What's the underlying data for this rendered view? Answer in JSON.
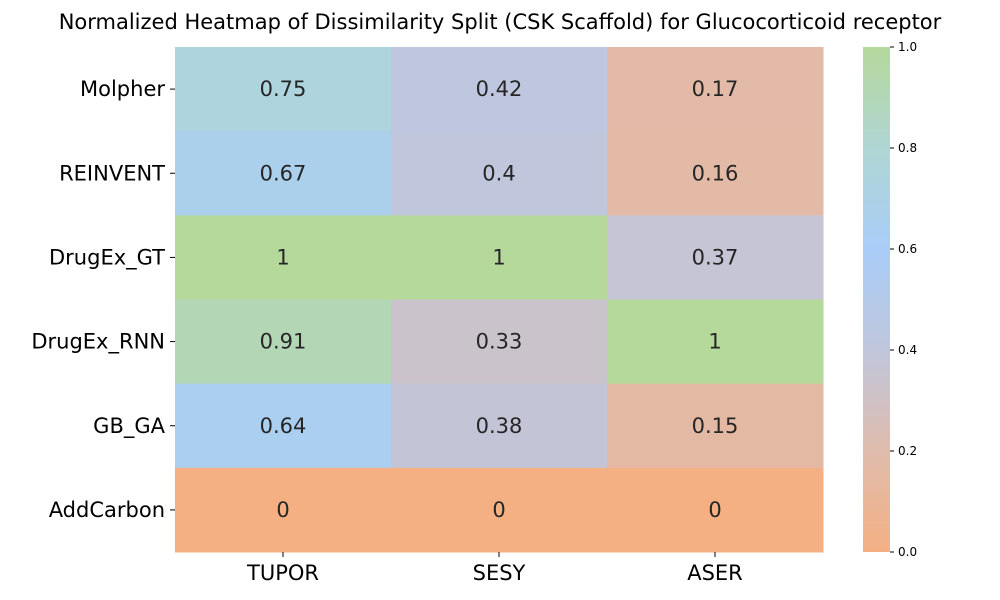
{
  "chart_data": {
    "type": "heatmap",
    "title": "Normalized Heatmap of Dissimilarity Split (CSK Scaffold) for Glucocorticoid receptor",
    "xlabel": "",
    "ylabel": "",
    "x_categories": [
      "TUPOR",
      "SESY",
      "ASER"
    ],
    "y_categories": [
      "Molpher",
      "REINVENT",
      "DrugEx_GT",
      "DrugEx_RNN",
      "GB_GA",
      "AddCarbon"
    ],
    "values": [
      [
        0.75,
        0.42,
        0.17
      ],
      [
        0.67,
        0.4,
        0.16
      ],
      [
        1,
        1,
        0.37
      ],
      [
        0.91,
        0.33,
        1
      ],
      [
        0.64,
        0.38,
        0.15
      ],
      [
        0,
        0,
        0
      ]
    ],
    "cell_labels": [
      [
        "0.75",
        "0.42",
        "0.17"
      ],
      [
        "0.67",
        "0.4",
        "0.16"
      ],
      [
        "1",
        "1",
        "0.37"
      ],
      [
        "0.91",
        "0.33",
        "1"
      ],
      [
        "0.64",
        "0.38",
        "0.15"
      ],
      [
        "0",
        "0",
        "0"
      ]
    ],
    "colorbar": {
      "range": [
        0,
        1
      ],
      "ticks": [
        "0.0",
        "0.2",
        "0.4",
        "0.6",
        "0.8",
        "1.0"
      ],
      "stops": [
        "#f4b083",
        "#dfbcad",
        "#c0c6dc",
        "#a9cdf8",
        "#b0d6d4",
        "#b5d89b"
      ]
    },
    "grid": false,
    "legend": "colorbar-right"
  }
}
